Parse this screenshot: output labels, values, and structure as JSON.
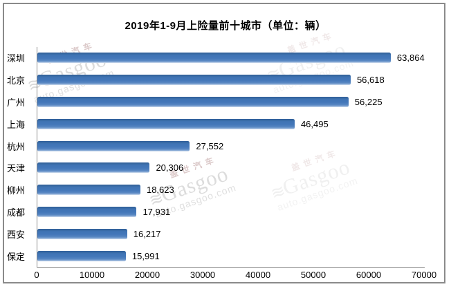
{
  "title": "2019年1-9月上险量前十城市（单位：辆）",
  "watermark": {
    "brand_cn": "盖世汽车",
    "brand_en": "Gasgoo",
    "site": "auto.gasgoo.com",
    "logo_glyph": "≋"
  },
  "chart_data": {
    "type": "bar",
    "orientation": "horizontal",
    "title": "2019年1-9月上险量前十城市（单位：辆）",
    "categories": [
      "深圳",
      "北京",
      "广州",
      "上海",
      "杭州",
      "天津",
      "柳州",
      "成都",
      "西安",
      "保定"
    ],
    "values": [
      63864,
      56618,
      56225,
      46495,
      27552,
      20306,
      18623,
      17931,
      16217,
      15991
    ],
    "value_labels": [
      "63,864",
      "56,618",
      "56,225",
      "46,495",
      "27,552",
      "20,306",
      "18,623",
      "17,931",
      "16,217",
      "15,991"
    ],
    "xlabel": "",
    "ylabel": "",
    "xlim": [
      0,
      70000
    ],
    "x_ticks": [
      "0",
      "10000",
      "20000",
      "30000",
      "40000",
      "50000",
      "60000",
      "70000"
    ],
    "grid": false,
    "legend": false,
    "bar_color": "#4478ba",
    "bar_color_dark_edge": "#2d5d9b",
    "axis_color": "#8a8a8a",
    "text_color": "#000000"
  }
}
